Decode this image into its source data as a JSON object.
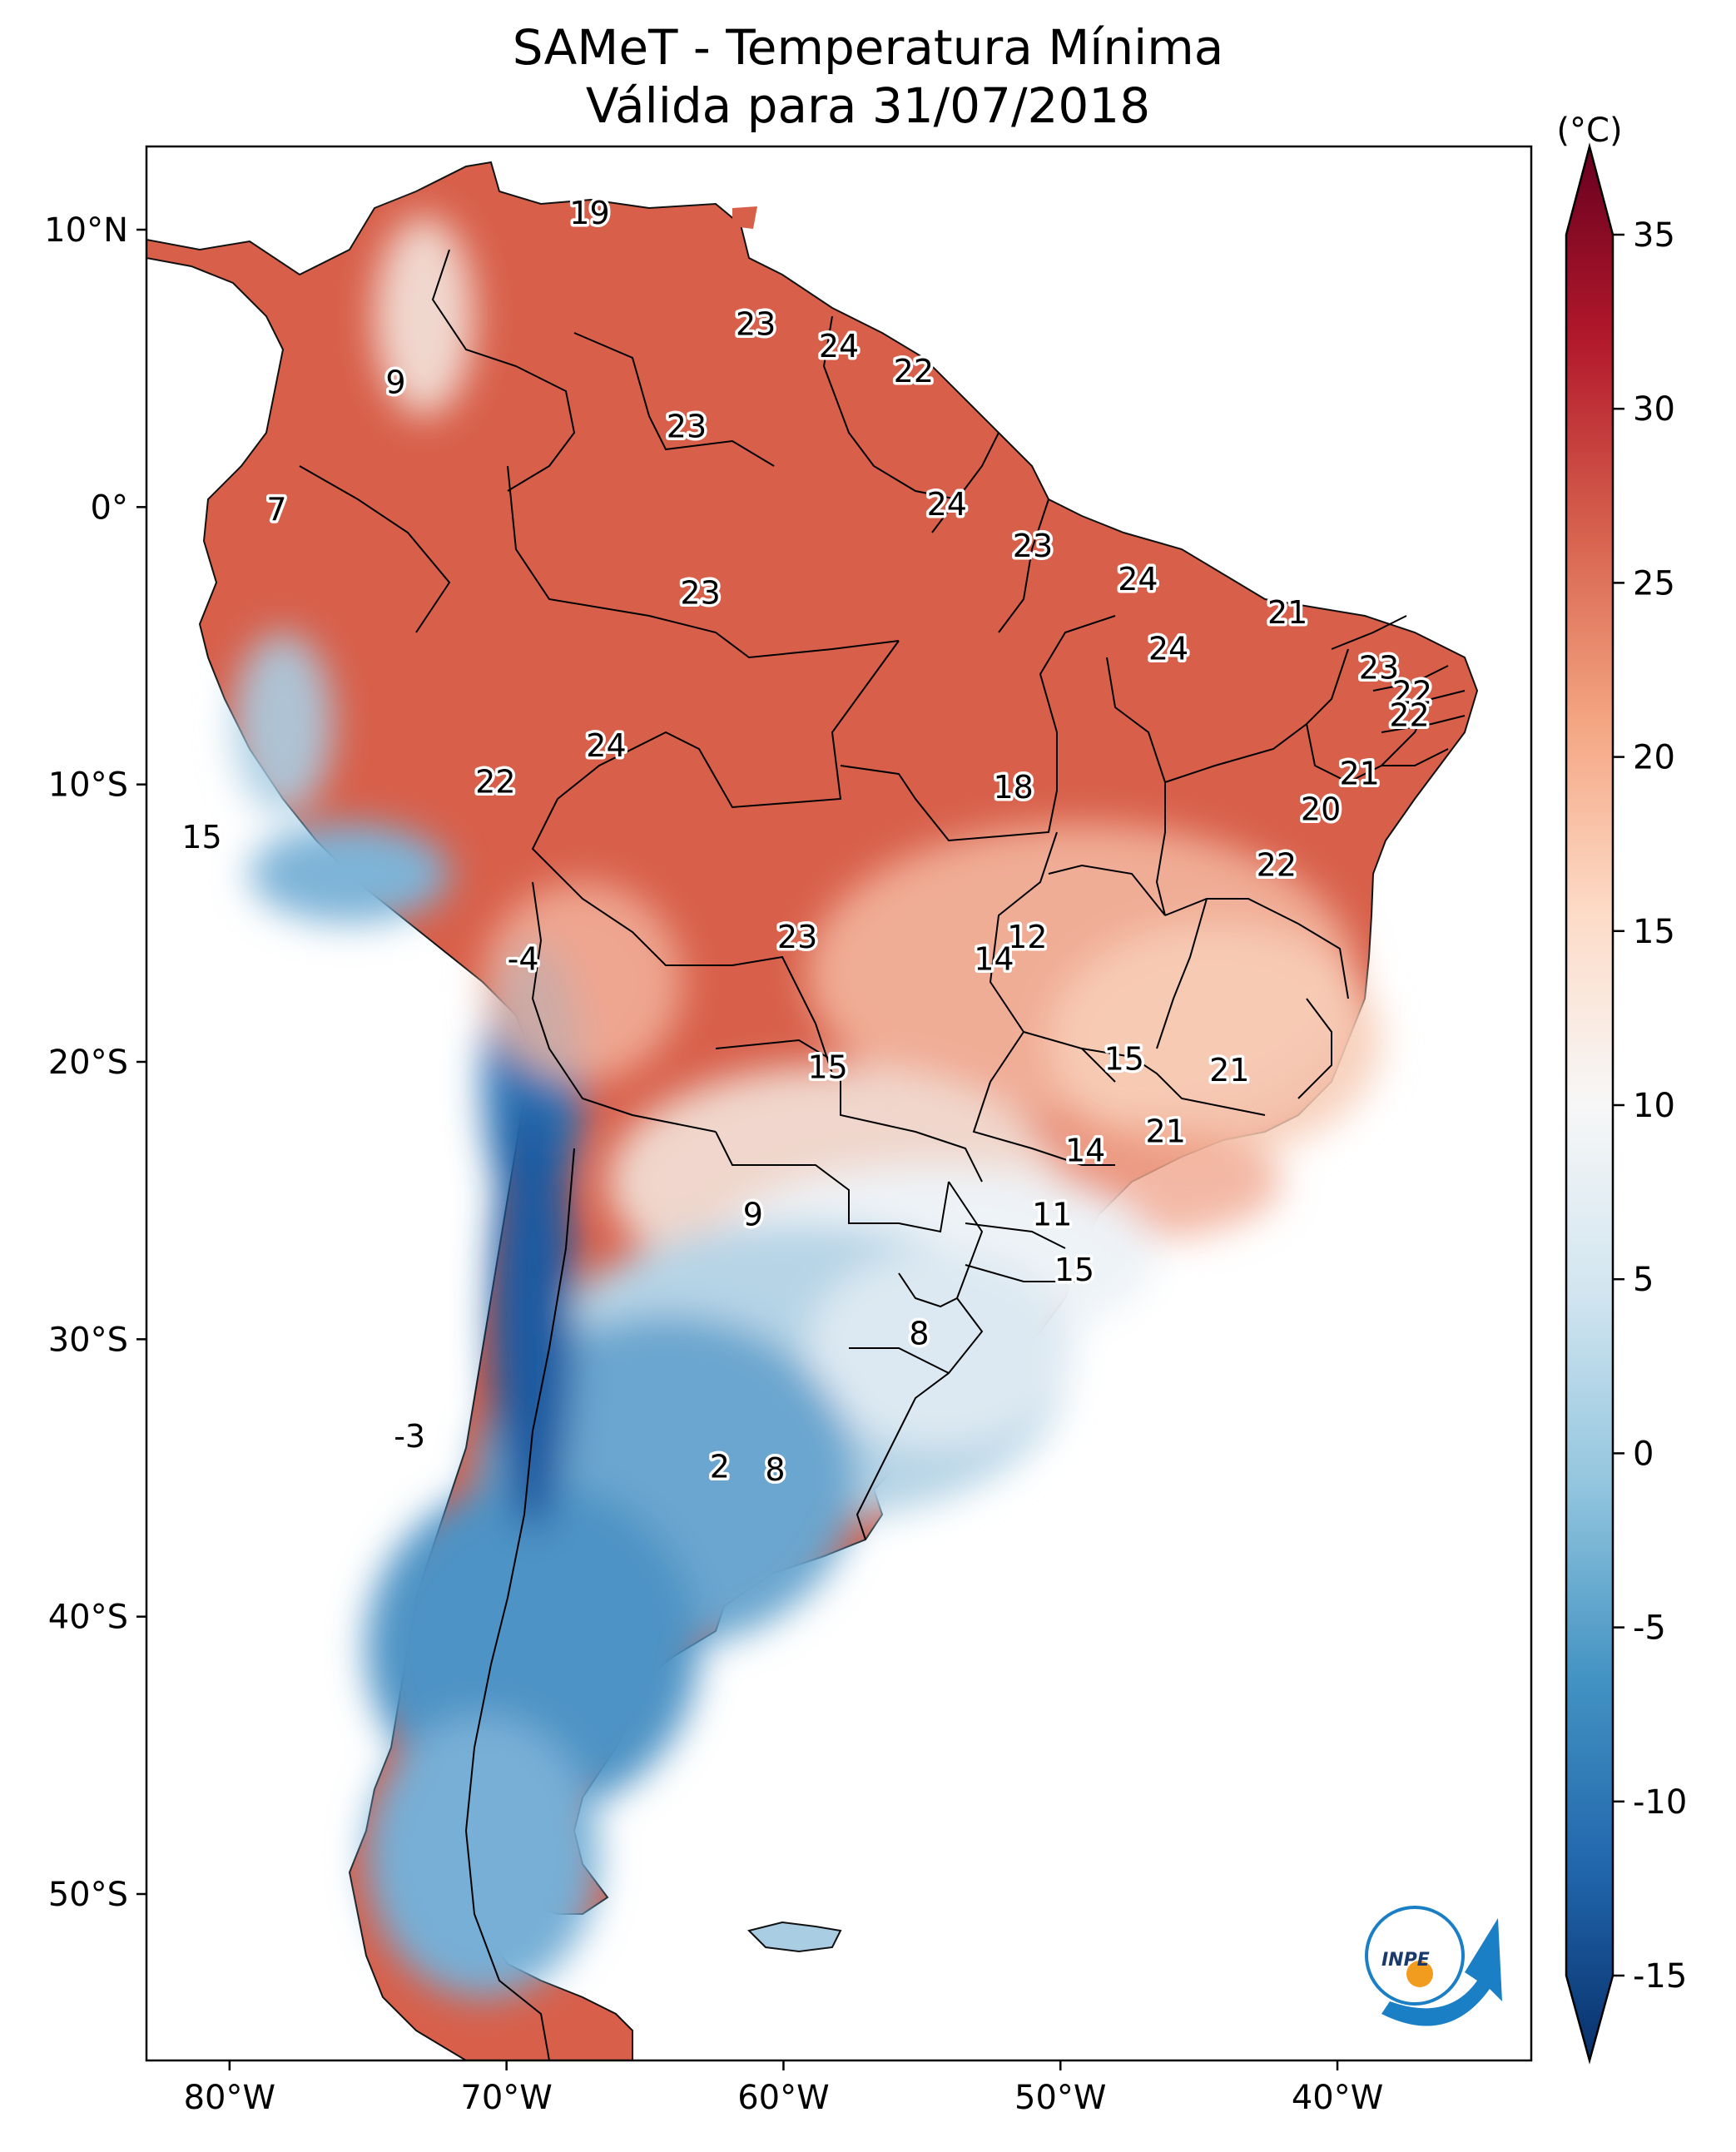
{
  "title": {
    "line1": "SAMeT - Temperatura Mínima",
    "line2": "Válida para 31/07/2018"
  },
  "map": {
    "region": "South America",
    "lon_range": [
      -83,
      -33
    ],
    "lat_range": [
      -56,
      13
    ],
    "lon_ticks": [
      {
        "value": -80,
        "label": "80°W"
      },
      {
        "value": -70,
        "label": "70°W"
      },
      {
        "value": -60,
        "label": "60°W"
      },
      {
        "value": -50,
        "label": "50°W"
      },
      {
        "value": -40,
        "label": "40°W"
      }
    ],
    "lat_ticks": [
      {
        "value": 10,
        "label": "10°N"
      },
      {
        "value": 0,
        "label": "0°"
      },
      {
        "value": -10,
        "label": "10°S"
      },
      {
        "value": -20,
        "label": "20°S"
      },
      {
        "value": -30,
        "label": "30°S"
      },
      {
        "value": -40,
        "label": "40°S"
      },
      {
        "value": -50,
        "label": "50°S"
      }
    ]
  },
  "colorbar": {
    "unit": "(°C)",
    "min": -15,
    "max": 35,
    "ticks": [
      {
        "value": 35,
        "label": "35"
      },
      {
        "value": 30,
        "label": "30"
      },
      {
        "value": 25,
        "label": "25"
      },
      {
        "value": 20,
        "label": "20"
      },
      {
        "value": 15,
        "label": "15"
      },
      {
        "value": 10,
        "label": "10"
      },
      {
        "value": 5,
        "label": "5"
      },
      {
        "value": 0,
        "label": "0"
      },
      {
        "value": -5,
        "label": "-5"
      },
      {
        "value": -10,
        "label": "-10"
      },
      {
        "value": -15,
        "label": "-15"
      }
    ],
    "colors": [
      "#08306b",
      "#2166ac",
      "#4393c3",
      "#92c5de",
      "#d1e5f0",
      "#f7f7f7",
      "#fddbc7",
      "#f4a582",
      "#d6604d",
      "#b2182b",
      "#67001f"
    ]
  },
  "temperature_labels": [
    {
      "text": "19",
      "lon": -67.0,
      "lat": 10.6
    },
    {
      "text": "9",
      "lon": -74.0,
      "lat": 4.5
    },
    {
      "text": "7",
      "lon": -78.3,
      "lat": -0.1
    },
    {
      "text": "23",
      "lon": -61.0,
      "lat": 6.6
    },
    {
      "text": "24",
      "lon": -58.0,
      "lat": 5.8
    },
    {
      "text": "22",
      "lon": -55.3,
      "lat": 4.9
    },
    {
      "text": "23",
      "lon": -63.5,
      "lat": 2.9
    },
    {
      "text": "24",
      "lon": -54.1,
      "lat": 0.1
    },
    {
      "text": "23",
      "lon": -51.0,
      "lat": -1.4
    },
    {
      "text": "23",
      "lon": -63.0,
      "lat": -3.1
    },
    {
      "text": "24",
      "lon": -47.2,
      "lat": -2.6
    },
    {
      "text": "21",
      "lon": -41.8,
      "lat": -3.8
    },
    {
      "text": "24",
      "lon": -46.1,
      "lat": -5.1
    },
    {
      "text": "23",
      "lon": -38.5,
      "lat": -5.8
    },
    {
      "text": "22",
      "lon": -37.3,
      "lat": -6.7
    },
    {
      "text": "22",
      "lon": -37.4,
      "lat": -7.5
    },
    {
      "text": "24",
      "lon": -66.4,
      "lat": -8.6
    },
    {
      "text": "22",
      "lon": -70.4,
      "lat": -9.9
    },
    {
      "text": "18",
      "lon": -51.7,
      "lat": -10.1
    },
    {
      "text": "21",
      "lon": -39.2,
      "lat": -9.6
    },
    {
      "text": "20",
      "lon": -40.6,
      "lat": -10.9
    },
    {
      "text": "15",
      "lon": -81.0,
      "lat": -11.9
    },
    {
      "text": "22",
      "lon": -42.2,
      "lat": -12.9
    },
    {
      "text": "23",
      "lon": -59.5,
      "lat": -15.5
    },
    {
      "text": "12",
      "lon": -51.2,
      "lat": -15.5
    },
    {
      "text": "14",
      "lon": -52.4,
      "lat": -16.3
    },
    {
      "text": "-4",
      "lon": -69.4,
      "lat": -16.3
    },
    {
      "text": "15",
      "lon": -58.4,
      "lat": -20.2
    },
    {
      "text": "15",
      "lon": -47.7,
      "lat": -19.9
    },
    {
      "text": "21",
      "lon": -43.9,
      "lat": -20.3
    },
    {
      "text": "21",
      "lon": -46.2,
      "lat": -22.5
    },
    {
      "text": "14",
      "lon": -49.1,
      "lat": -23.2
    },
    {
      "text": "9",
      "lon": -61.1,
      "lat": -25.5
    },
    {
      "text": "11",
      "lon": -50.3,
      "lat": -25.5
    },
    {
      "text": "15",
      "lon": -49.5,
      "lat": -27.5
    },
    {
      "text": "8",
      "lon": -55.1,
      "lat": -29.8
    },
    {
      "text": "-3",
      "lon": -73.5,
      "lat": -33.5
    },
    {
      "text": "2",
      "lon": -62.3,
      "lat": -34.6
    },
    {
      "text": "8",
      "lon": -60.3,
      "lat": -34.7
    }
  ],
  "logo": {
    "text": "INPE",
    "colors": [
      "#1a7fc4",
      "#f29c1f"
    ]
  }
}
